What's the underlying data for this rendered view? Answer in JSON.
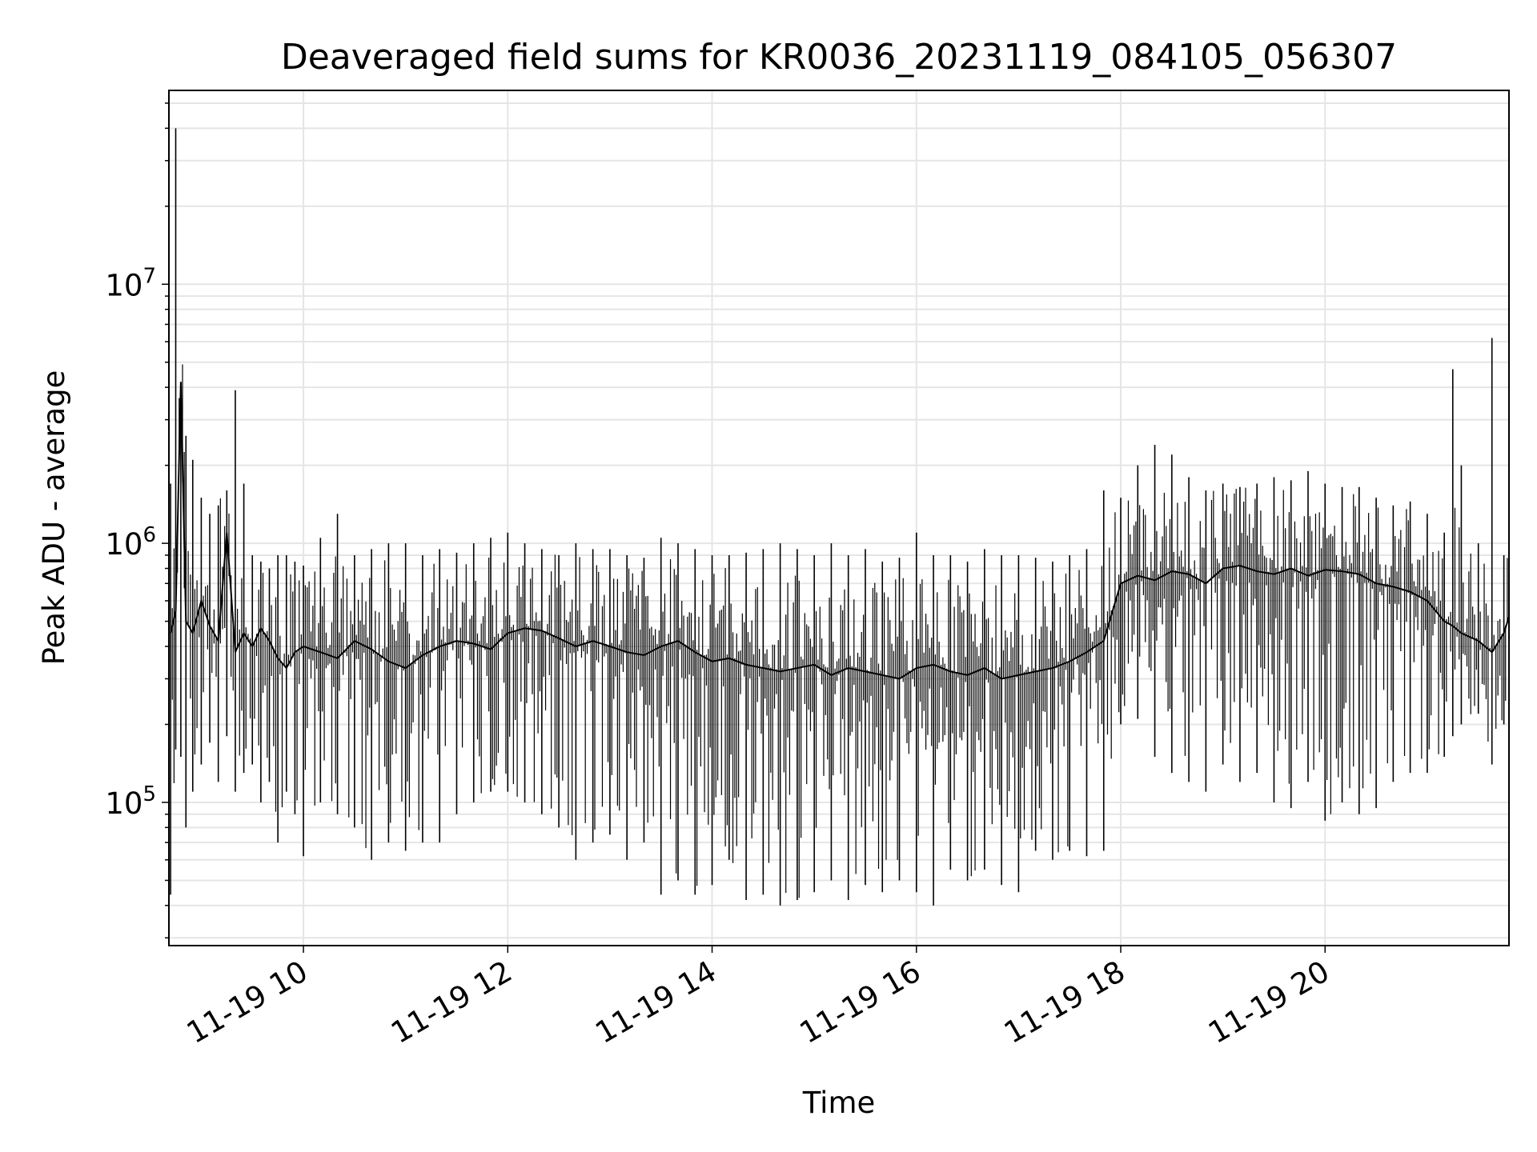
{
  "chart_data": {
    "type": "line",
    "title": "Deaveraged field sums for KR0036_20231119_084105_056307",
    "xlabel": "Time",
    "ylabel": "Peak ADU - average",
    "y_scale": "log",
    "ylim": [
      28000,
      56000000
    ],
    "xlim": [
      "2023-11-19 08:41",
      "2023-11-19 21:48"
    ],
    "grid": true,
    "line_color": "#000000",
    "grid_color": "#e5e5e5",
    "x_ticks": [
      {
        "value": "2023-11-19 10:00",
        "label": "11-19 10"
      },
      {
        "value": "2023-11-19 12:00",
        "label": "11-19 12"
      },
      {
        "value": "2023-11-19 14:00",
        "label": "11-19 14"
      },
      {
        "value": "2023-11-19 16:00",
        "label": "11-19 16"
      },
      {
        "value": "2023-11-19 18:00",
        "label": "11-19 18"
      },
      {
        "value": "2023-11-19 20:00",
        "label": "11-19 20"
      }
    ],
    "y_ticks": [
      {
        "value": 100000,
        "base": "10",
        "exp": "5"
      },
      {
        "value": 1000000,
        "base": "10",
        "exp": "6"
      },
      {
        "value": 10000000,
        "base": "10",
        "exp": "7"
      }
    ],
    "series": [
      {
        "x": [
          "2023-11-19 08:42",
          "2023-11-19 08:45",
          "2023-11-19 08:48",
          "2023-11-19 08:51",
          "2023-11-19 08:55",
          "2023-11-19 09:00",
          "2023-11-19 09:05",
          "2023-11-19 09:10",
          "2023-11-19 09:15",
          "2023-11-19 09:20",
          "2023-11-19 09:25",
          "2023-11-19 09:30",
          "2023-11-19 09:35",
          "2023-11-19 09:40",
          "2023-11-19 09:45",
          "2023-11-19 09:50",
          "2023-11-19 09:55",
          "2023-11-19 10:00",
          "2023-11-19 10:10",
          "2023-11-19 10:20",
          "2023-11-19 10:30",
          "2023-11-19 10:40",
          "2023-11-19 10:50",
          "2023-11-19 11:00",
          "2023-11-19 11:10",
          "2023-11-19 11:20",
          "2023-11-19 11:30",
          "2023-11-19 11:40",
          "2023-11-19 11:50",
          "2023-11-19 12:00",
          "2023-11-19 12:10",
          "2023-11-19 12:20",
          "2023-11-19 12:30",
          "2023-11-19 12:40",
          "2023-11-19 12:50",
          "2023-11-19 13:00",
          "2023-11-19 13:10",
          "2023-11-19 13:20",
          "2023-11-19 13:30",
          "2023-11-19 13:40",
          "2023-11-19 13:50",
          "2023-11-19 14:00",
          "2023-11-19 14:10",
          "2023-11-19 14:20",
          "2023-11-19 14:30",
          "2023-11-19 14:40",
          "2023-11-19 14:50",
          "2023-11-19 15:00",
          "2023-11-19 15:10",
          "2023-11-19 15:20",
          "2023-11-19 15:30",
          "2023-11-19 15:40",
          "2023-11-19 15:50",
          "2023-11-19 16:00",
          "2023-11-19 16:10",
          "2023-11-19 16:20",
          "2023-11-19 16:30",
          "2023-11-19 16:40",
          "2023-11-19 16:50",
          "2023-11-19 17:00",
          "2023-11-19 17:10",
          "2023-11-19 17:20",
          "2023-11-19 17:30",
          "2023-11-19 17:40",
          "2023-11-19 17:50",
          "2023-11-19 18:00",
          "2023-11-19 18:10",
          "2023-11-19 18:20",
          "2023-11-19 18:30",
          "2023-11-19 18:40",
          "2023-11-19 18:50",
          "2023-11-19 19:00",
          "2023-11-19 19:10",
          "2023-11-19 19:20",
          "2023-11-19 19:30",
          "2023-11-19 19:40",
          "2023-11-19 19:50",
          "2023-11-19 20:00",
          "2023-11-19 20:10",
          "2023-11-19 20:20",
          "2023-11-19 20:30",
          "2023-11-19 20:40",
          "2023-11-19 20:50",
          "2023-11-19 21:00",
          "2023-11-19 21:10",
          "2023-11-19 21:15",
          "2023-11-19 21:20",
          "2023-11-19 21:30",
          "2023-11-19 21:38",
          "2023-11-19 21:45",
          "2023-11-19 21:48"
        ],
        "y": [
          450000,
          550000,
          4200000,
          500000,
          450000,
          600000,
          480000,
          420000,
          1100000,
          380000,
          450000,
          400000,
          470000,
          420000,
          360000,
          330000,
          380000,
          400000,
          380000,
          360000,
          420000,
          390000,
          350000,
          330000,
          370000,
          400000,
          420000,
          410000,
          390000,
          450000,
          470000,
          460000,
          430000,
          400000,
          420000,
          400000,
          380000,
          370000,
          400000,
          420000,
          380000,
          350000,
          360000,
          340000,
          330000,
          320000,
          330000,
          340000,
          310000,
          330000,
          320000,
          310000,
          300000,
          330000,
          340000,
          320000,
          310000,
          330000,
          300000,
          310000,
          320000,
          330000,
          350000,
          380000,
          420000,
          700000,
          750000,
          720000,
          780000,
          760000,
          700000,
          800000,
          820000,
          780000,
          760000,
          800000,
          750000,
          790000,
          780000,
          760000,
          700000,
          680000,
          650000,
          600000,
          500000,
          480000,
          450000,
          420000,
          380000,
          450000,
          520000
        ],
        "ymin": [
          44000,
          160000,
          150000,
          80000,
          110000,
          140000,
          170000,
          120000,
          180000,
          110000,
          130000,
          140000,
          100000,
          120000,
          70000,
          110000,
          90000,
          62000,
          100000,
          90000,
          80000,
          60000,
          70000,
          65000,
          70000,
          70000,
          90000,
          100000,
          110000,
          110000,
          100000,
          90000,
          80000,
          60000,
          70000,
          75000,
          60000,
          70000,
          44000,
          50000,
          44000,
          48000,
          60000,
          42000,
          44000,
          40000,
          42000,
          45000,
          50000,
          42000,
          48000,
          45000,
          50000,
          45000,
          40000,
          55000,
          50000,
          55000,
          48000,
          45000,
          65000,
          60000,
          65000,
          62000,
          65000,
          200000,
          210000,
          150000,
          130000,
          120000,
          110000,
          140000,
          120000,
          130000,
          100000,
          95000,
          120000,
          85000,
          100000,
          90000,
          95000,
          120000,
          130000,
          130000,
          150000,
          180000,
          200000,
          220000,
          140000,
          200000,
          300000
        ],
        "ymax": [
          1700000,
          40000000,
          3000000,
          2600000,
          2100000,
          1500000,
          1300000,
          1400000,
          1600000,
          3900000,
          1700000,
          900000,
          850000,
          800000,
          900000,
          900000,
          850000,
          820000,
          1050000,
          1300000,
          900000,
          950000,
          1000000,
          1000000,
          900000,
          950000,
          920000,
          1000000,
          1050000,
          1100000,
          1000000,
          950000,
          900000,
          1000000,
          950000,
          950000,
          900000,
          880000,
          1050000,
          1000000,
          950000,
          900000,
          900000,
          920000,
          950000,
          1000000,
          950000,
          900000,
          1000000,
          900000,
          950000,
          850000,
          880000,
          1100000,
          900000,
          900000,
          850000,
          950000,
          900000,
          900000,
          880000,
          850000,
          900000,
          950000,
          1600000,
          1500000,
          2000000,
          2400000,
          2200000,
          1800000,
          1600000,
          1700000,
          1650000,
          1700000,
          1800000,
          1750000,
          1900000,
          1700000,
          1650000,
          1650000,
          1500000,
          1400000,
          1450000,
          1300000,
          1100000,
          4700000,
          2000000,
          1000000,
          6200000,
          900000,
          750000
        ]
      }
    ]
  }
}
